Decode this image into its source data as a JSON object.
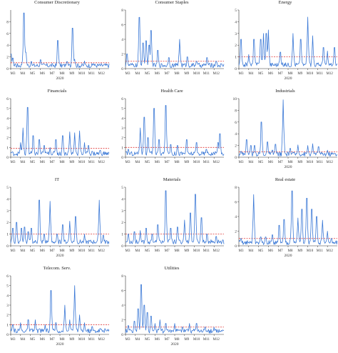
{
  "chart_data": [
    {
      "type": "line",
      "title": "Consumer Discretionary",
      "year": "2020",
      "ylim": [
        0,
        10
      ],
      "yticks": [
        0,
        2,
        4,
        6,
        8
      ],
      "threshold": 1,
      "categories": [
        "M3",
        "M4",
        "M5",
        "M6",
        "M7",
        "M8",
        "M9",
        "M10",
        "M11",
        "M12"
      ],
      "spikes": [
        [
          0.2,
          1.8
        ],
        [
          0.05,
          2.5
        ],
        [
          0.45,
          0.8
        ],
        [
          1.2,
          1.4
        ],
        [
          1.35,
          9.5
        ],
        [
          1.55,
          2.8
        ],
        [
          2.1,
          1.2
        ],
        [
          3.05,
          1.5
        ],
        [
          4.8,
          4.8
        ],
        [
          5.7,
          1.2
        ],
        [
          6.3,
          6.9
        ],
        [
          6.5,
          1.6
        ],
        [
          7.5,
          1.3
        ],
        [
          8.4,
          0.8
        ]
      ]
    },
    {
      "type": "line",
      "title": "Consumer Staples",
      "year": "",
      "ylim": [
        0,
        8
      ],
      "yticks": [
        0,
        2,
        4,
        6,
        8
      ],
      "threshold": 1,
      "categories": [
        "M3",
        "M4",
        "M5",
        "M6",
        "M7",
        "M8",
        "M9",
        "M10",
        "M11",
        "M12"
      ],
      "spikes": [
        [
          0.15,
          2.0
        ],
        [
          1.4,
          7.0
        ],
        [
          1.8,
          3.5
        ],
        [
          2.1,
          3.8
        ],
        [
          2.4,
          3.2
        ],
        [
          2.6,
          5.2
        ],
        [
          3.3,
          2.5
        ],
        [
          4.4,
          1.5
        ],
        [
          5.5,
          4.0
        ],
        [
          6.3,
          1.6
        ],
        [
          7.2,
          1.0
        ],
        [
          8.3,
          1.5
        ],
        [
          9.2,
          1.0
        ]
      ]
    },
    {
      "type": "line",
      "title": "Energy",
      "year": "2020",
      "ylim": [
        0,
        5
      ],
      "yticks": [
        0,
        1,
        2,
        3,
        4,
        5
      ],
      "threshold": 1,
      "categories": [
        "M3",
        "M4",
        "M5",
        "M6",
        "M7",
        "M8",
        "M9",
        "M10",
        "M11",
        "M12"
      ],
      "spikes": [
        [
          0.2,
          2.5
        ],
        [
          1.0,
          1.2
        ],
        [
          1.55,
          2.5
        ],
        [
          2.2,
          2.5
        ],
        [
          2.5,
          3.0
        ],
        [
          2.8,
          3.0
        ],
        [
          3.0,
          3.3
        ],
        [
          4.2,
          1.4
        ],
        [
          5.5,
          3.0
        ],
        [
          6.3,
          2.5
        ],
        [
          7.0,
          4.4
        ],
        [
          7.5,
          2.8
        ],
        [
          8.6,
          1.8
        ],
        [
          9.0,
          1.5
        ],
        [
          9.7,
          1.8
        ]
      ]
    },
    {
      "type": "line",
      "title": "Financials",
      "year": "",
      "ylim": [
        0,
        6
      ],
      "yticks": [
        0,
        1,
        2,
        3,
        4,
        5,
        6
      ],
      "threshold": 0.9,
      "categories": [
        "M3",
        "M4",
        "M5",
        "M6",
        "M7",
        "M8",
        "M9",
        "M10",
        "M11",
        "M12"
      ],
      "spikes": [
        [
          0.1,
          0.5
        ],
        [
          1.0,
          1.5
        ],
        [
          1.25,
          3.0
        ],
        [
          1.7,
          5.1
        ],
        [
          2.3,
          2.2
        ],
        [
          2.9,
          1.8
        ],
        [
          3.4,
          1.2
        ],
        [
          4.0,
          1.0
        ],
        [
          4.6,
          1.8
        ],
        [
          5.3,
          2.2
        ],
        [
          6.0,
          2.6
        ],
        [
          6.5,
          2.5
        ],
        [
          7.0,
          2.7
        ],
        [
          7.5,
          1.5
        ],
        [
          7.9,
          1.2
        ],
        [
          8.3,
          0.6
        ],
        [
          9.1,
          0.7
        ]
      ]
    },
    {
      "type": "line",
      "title": "Health Care",
      "year": "",
      "ylim": [
        0,
        6
      ],
      "yticks": [
        0,
        1,
        2,
        3,
        4,
        5,
        6
      ],
      "threshold": 1,
      "categories": [
        "M3",
        "M4",
        "M5",
        "M6",
        "M7",
        "M8",
        "M9",
        "M10",
        "M11",
        "M12"
      ],
      "spikes": [
        [
          0.3,
          0.8
        ],
        [
          1.5,
          3.0
        ],
        [
          1.9,
          4.1
        ],
        [
          2.3,
          2.0
        ],
        [
          2.9,
          5.0
        ],
        [
          3.4,
          1.8
        ],
        [
          4.1,
          5.3
        ],
        [
          4.6,
          1.3
        ],
        [
          5.3,
          1.2
        ],
        [
          6.2,
          1.8
        ],
        [
          7.2,
          1.5
        ],
        [
          8.2,
          0.8
        ],
        [
          9.4,
          1.5
        ],
        [
          9.6,
          2.4
        ]
      ]
    },
    {
      "type": "line",
      "title": "Industrials",
      "year": "2020",
      "ylim": [
        0,
        10
      ],
      "yticks": [
        0,
        2,
        4,
        6,
        8,
        10
      ],
      "threshold": 0.9,
      "categories": [
        "M3",
        "M4",
        "M5",
        "M6",
        "M7",
        "M8",
        "M9",
        "M10",
        "M11",
        "M12"
      ],
      "spikes": [
        [
          0.2,
          1.0
        ],
        [
          0.8,
          3.0
        ],
        [
          1.2,
          2.0
        ],
        [
          1.6,
          2.0
        ],
        [
          2.3,
          6.0
        ],
        [
          2.9,
          2.6
        ],
        [
          3.4,
          1.2
        ],
        [
          3.7,
          2.2
        ],
        [
          4.5,
          9.8
        ],
        [
          5.2,
          1.5
        ],
        [
          6.0,
          2.1
        ],
        [
          7.0,
          2.0
        ],
        [
          7.5,
          2.3
        ],
        [
          8.1,
          1.8
        ],
        [
          9.0,
          1.2
        ]
      ]
    },
    {
      "type": "line",
      "title": "IT",
      "year": "2020",
      "ylim": [
        0,
        5
      ],
      "yticks": [
        0,
        1,
        2,
        3,
        4,
        5
      ],
      "threshold": 1,
      "categories": [
        "M3",
        "M4",
        "M5",
        "M6",
        "M7",
        "M8",
        "M9",
        "M10",
        "M11",
        "M12"
      ],
      "spikes": [
        [
          0.2,
          1.5
        ],
        [
          0.6,
          2.0
        ],
        [
          1.1,
          1.5
        ],
        [
          1.4,
          1.6
        ],
        [
          1.8,
          1.2
        ],
        [
          2.1,
          1.5
        ],
        [
          2.9,
          3.9
        ],
        [
          3.4,
          1.0
        ],
        [
          4.0,
          3.8
        ],
        [
          4.7,
          1.0
        ],
        [
          5.3,
          1.8
        ],
        [
          6.0,
          2.1
        ],
        [
          6.6,
          2.5
        ],
        [
          7.5,
          1.0
        ],
        [
          8.1,
          0.4
        ],
        [
          9.0,
          3.9
        ],
        [
          9.4,
          0.9
        ]
      ]
    },
    {
      "type": "line",
      "title": "Materials",
      "year": "",
      "ylim": [
        0,
        5
      ],
      "yticks": [
        0,
        1,
        2,
        3,
        4,
        5
      ],
      "threshold": 1,
      "categories": [
        "M3",
        "M4",
        "M5",
        "M6",
        "M7",
        "M8",
        "M9",
        "M10",
        "M11",
        "M12"
      ],
      "spikes": [
        [
          0.3,
          1.0
        ],
        [
          0.9,
          1.2
        ],
        [
          1.5,
          1.3
        ],
        [
          2.1,
          1.5
        ],
        [
          2.7,
          1.0
        ],
        [
          3.3,
          1.8
        ],
        [
          4.1,
          4.7
        ],
        [
          4.6,
          1.5
        ],
        [
          5.3,
          1.6
        ],
        [
          6.0,
          2.2
        ],
        [
          6.6,
          2.8
        ],
        [
          7.1,
          4.4
        ],
        [
          7.7,
          2.4
        ],
        [
          8.3,
          1.0
        ],
        [
          9.2,
          0.8
        ]
      ]
    },
    {
      "type": "line",
      "title": "Real estate",
      "year": "2020",
      "ylim": [
        0,
        8
      ],
      "yticks": [
        0,
        2,
        4,
        6,
        8
      ],
      "threshold": 1,
      "categories": [
        "M3",
        "M4",
        "M5",
        "M6",
        "M7",
        "M8",
        "M9",
        "M10",
        "M11",
        "M12"
      ],
      "spikes": [
        [
          0.2,
          1.0
        ],
        [
          1.5,
          7.0
        ],
        [
          2.2,
          1.2
        ],
        [
          2.7,
          1.2
        ],
        [
          3.4,
          1.5
        ],
        [
          4.1,
          2.8
        ],
        [
          4.6,
          3.6
        ],
        [
          5.4,
          7.5
        ],
        [
          6.0,
          3.8
        ],
        [
          6.4,
          5.0
        ],
        [
          6.9,
          6.5
        ],
        [
          7.4,
          5.0
        ],
        [
          7.9,
          4.0
        ],
        [
          8.5,
          3.5
        ],
        [
          9.0,
          2.0
        ],
        [
          9.4,
          1.0
        ]
      ]
    },
    {
      "type": "line",
      "title": "Telecom. Serv.",
      "year": "2020",
      "ylim": [
        0,
        6
      ],
      "yticks": [
        0,
        1,
        2,
        3,
        4,
        5,
        6
      ],
      "threshold": 1,
      "categories": [
        "M3",
        "M4",
        "M5",
        "M6",
        "M7",
        "M8",
        "M9",
        "M10",
        "M11",
        "M12"
      ],
      "spikes": [
        [
          0.2,
          1.0
        ],
        [
          1.0,
          1.2
        ],
        [
          1.8,
          1.5
        ],
        [
          2.5,
          1.5
        ],
        [
          3.5,
          1.0
        ],
        [
          4.1,
          4.5
        ],
        [
          4.6,
          1.2
        ],
        [
          5.5,
          3.0
        ],
        [
          6.0,
          1.5
        ],
        [
          6.5,
          5.0
        ],
        [
          7.0,
          2.0
        ],
        [
          7.5,
          1.2
        ],
        [
          8.3,
          0.8
        ],
        [
          9.1,
          0.6
        ]
      ]
    },
    {
      "type": "line",
      "title": "Utilities",
      "year": "2020",
      "ylim": [
        0,
        8
      ],
      "yticks": [
        0,
        2,
        4,
        6,
        8
      ],
      "threshold": 1,
      "categories": [
        "M3",
        "M4",
        "M5",
        "M6",
        "M7",
        "M8",
        "M9",
        "M10",
        "M11",
        "M12"
      ],
      "spikes": [
        [
          0.3,
          1.2
        ],
        [
          0.9,
          1.8
        ],
        [
          1.3,
          3.5
        ],
        [
          1.6,
          6.8
        ],
        [
          1.9,
          4.0
        ],
        [
          2.2,
          3.0
        ],
        [
          2.6,
          2.5
        ],
        [
          3.0,
          1.5
        ],
        [
          3.5,
          2.0
        ],
        [
          4.1,
          1.5
        ],
        [
          5.0,
          1.5
        ],
        [
          5.8,
          1.0
        ],
        [
          6.5,
          1.5
        ],
        [
          7.2,
          1.5
        ],
        [
          8.1,
          1.0
        ],
        [
          9.0,
          1.0
        ]
      ]
    }
  ]
}
